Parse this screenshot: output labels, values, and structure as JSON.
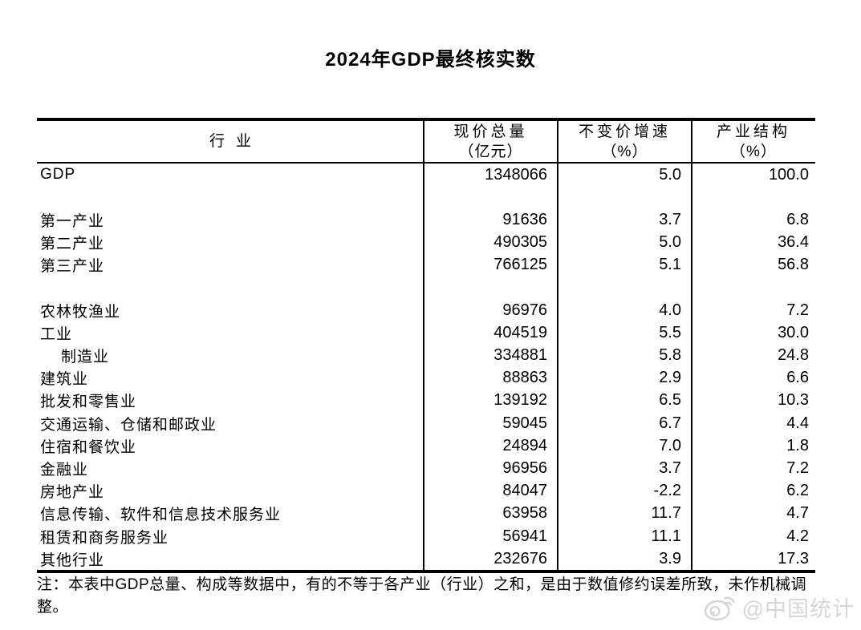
{
  "title": "2024年GDP最终核实数",
  "table": {
    "headers": {
      "industry": "行业",
      "current_price_total": {
        "line1": "现价总量",
        "line2": "（亿元）"
      },
      "constant_price_growth": {
        "line1": "不变价增速",
        "line2": "（%）"
      },
      "industry_structure": {
        "line1": "产业结构",
        "line2": "（%）"
      }
    },
    "rows": [
      {
        "label": "GDP",
        "total": "1348066",
        "growth": "5.0",
        "share": "100.0",
        "indent": false,
        "gap_before": false
      },
      {
        "label": "第一产业",
        "total": "91636",
        "growth": "3.7",
        "share": "6.8",
        "indent": false,
        "gap_before": true
      },
      {
        "label": "第二产业",
        "total": "490305",
        "growth": "5.0",
        "share": "36.4",
        "indent": false,
        "gap_before": false
      },
      {
        "label": "第三产业",
        "total": "766125",
        "growth": "5.1",
        "share": "56.8",
        "indent": false,
        "gap_before": false
      },
      {
        "label": "农林牧渔业",
        "total": "96976",
        "growth": "4.0",
        "share": "7.2",
        "indent": false,
        "gap_before": true
      },
      {
        "label": "工业",
        "total": "404519",
        "growth": "5.5",
        "share": "30.0",
        "indent": false,
        "gap_before": false
      },
      {
        "label": "制造业",
        "total": "334881",
        "growth": "5.8",
        "share": "24.8",
        "indent": true,
        "gap_before": false
      },
      {
        "label": "建筑业",
        "total": "88863",
        "growth": "2.9",
        "share": "6.6",
        "indent": false,
        "gap_before": false
      },
      {
        "label": "批发和零售业",
        "total": "139192",
        "growth": "6.5",
        "share": "10.3",
        "indent": false,
        "gap_before": false
      },
      {
        "label": "交通运输、仓储和邮政业",
        "total": "59045",
        "growth": "6.7",
        "share": "4.4",
        "indent": false,
        "gap_before": false
      },
      {
        "label": "住宿和餐饮业",
        "total": "24894",
        "growth": "7.0",
        "share": "1.8",
        "indent": false,
        "gap_before": false
      },
      {
        "label": "金融业",
        "total": "96956",
        "growth": "3.7",
        "share": "7.2",
        "indent": false,
        "gap_before": false
      },
      {
        "label": "房地产业",
        "total": "84047",
        "growth": "-2.2",
        "share": "6.2",
        "indent": false,
        "gap_before": false
      },
      {
        "label": "信息传输、软件和信息技术服务业",
        "total": "63958",
        "growth": "11.7",
        "share": "4.7",
        "indent": false,
        "gap_before": false
      },
      {
        "label": "租赁和商务服务业",
        "total": "56941",
        "growth": "11.1",
        "share": "4.2",
        "indent": false,
        "gap_before": false
      },
      {
        "label": "其他行业",
        "total": "232676",
        "growth": "3.9",
        "share": "17.3",
        "indent": false,
        "gap_before": false
      }
    ]
  },
  "note": "注：本表中GDP总量、构成等数据中，有的不等于各产业（行业）之和，是由于数值修约误差所致，未作机械调整。",
  "watermark": {
    "text": "@中国统计",
    "icon": "weibo-icon",
    "color": "#d6d6d6"
  },
  "colors": {
    "text": "#000000",
    "background": "#ffffff",
    "border": "#000000"
  }
}
